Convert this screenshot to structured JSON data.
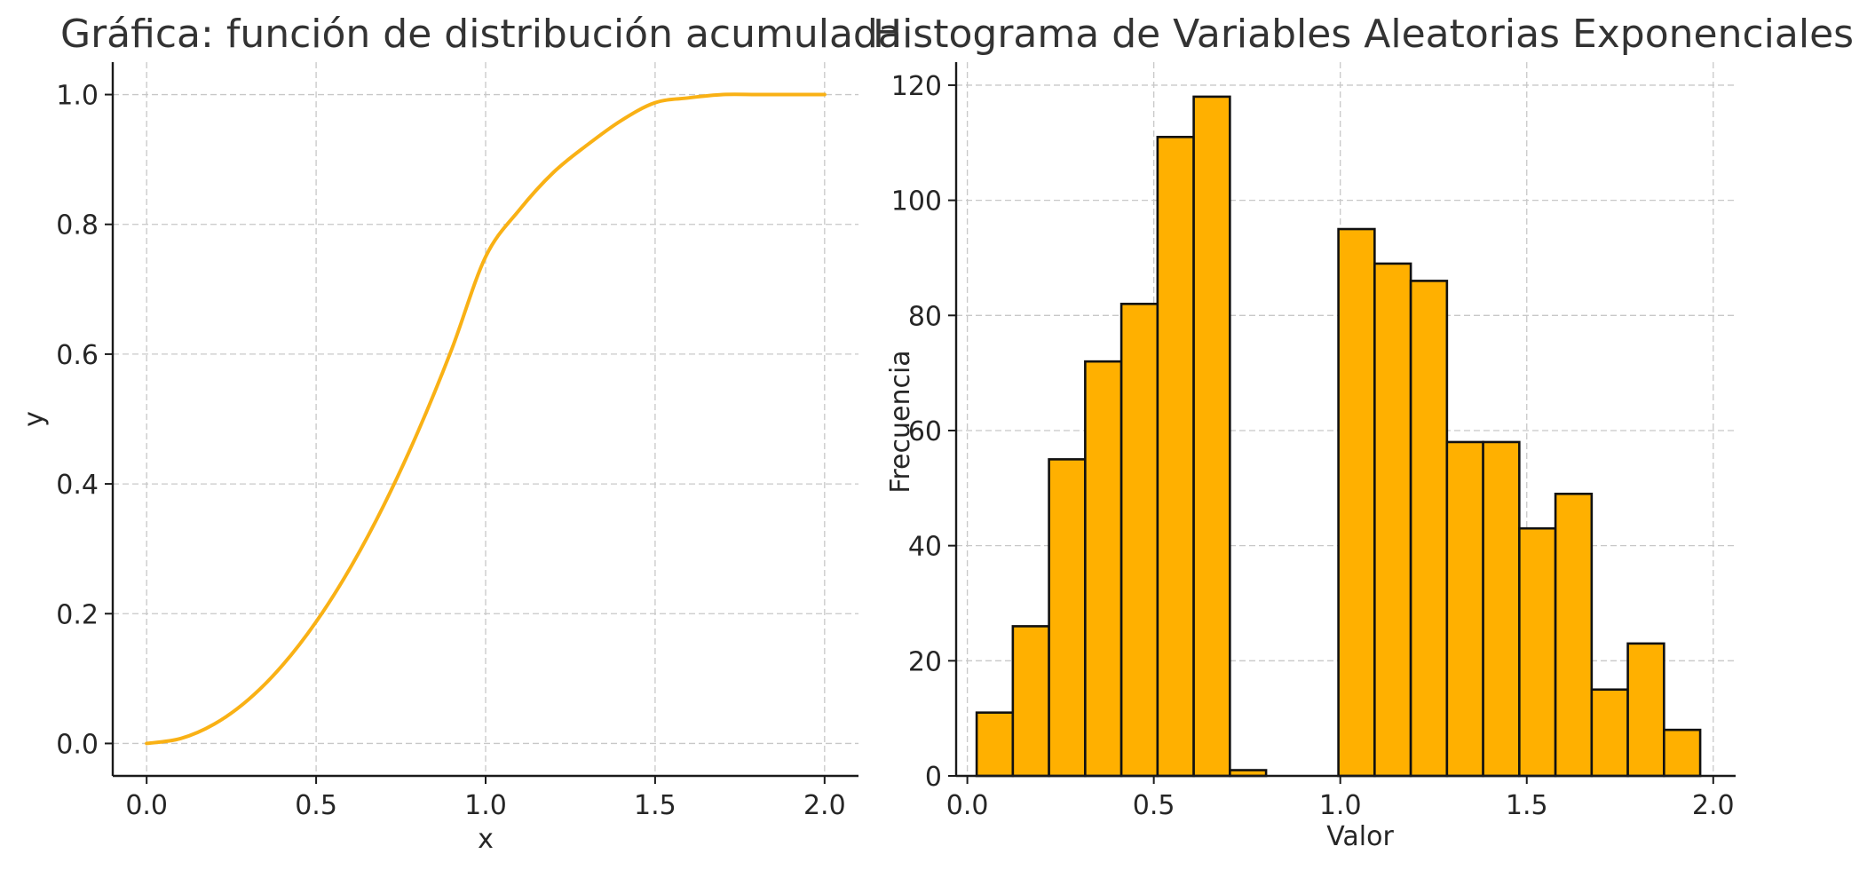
{
  "colors": {
    "line": "#F9B115",
    "bar_fill": "#FFB000",
    "bar_edge": "#111111",
    "grid": "#C8C8C8"
  },
  "chart_data": [
    {
      "type": "line",
      "title": "Gráfica: función de distribución acumulada",
      "xlabel": "x",
      "ylabel": "y",
      "xlim": [
        -0.1,
        2.1
      ],
      "ylim": [
        -0.05,
        1.05
      ],
      "xticks": [
        0.0,
        0.5,
        1.0,
        1.5,
        2.0
      ],
      "xtick_labels": [
        "0.0",
        "0.5",
        "1.0",
        "1.5",
        "2.0"
      ],
      "yticks": [
        0.0,
        0.2,
        0.4,
        0.6,
        0.8,
        1.0
      ],
      "ytick_labels": [
        "0.0",
        "0.2",
        "0.4",
        "0.6",
        "0.8",
        "1.0"
      ],
      "grid": true,
      "series": [
        {
          "x": [
            0.0,
            0.1,
            0.2,
            0.3,
            0.4,
            0.5,
            0.6,
            0.7,
            0.8,
            0.9,
            1.0,
            1.1,
            1.2,
            1.3,
            1.4,
            1.5,
            1.6,
            1.7,
            1.8,
            1.9,
            2.0
          ],
          "y": [
            0.0,
            0.0075,
            0.03,
            0.0675,
            0.12,
            0.1875,
            0.27,
            0.3675,
            0.48,
            0.6075,
            0.75,
            0.8225,
            0.88,
            0.9225,
            0.96,
            0.9875,
            0.995,
            1.0,
            1.0,
            1.0,
            1.0
          ]
        }
      ]
    },
    {
      "type": "bar",
      "title": "Histograma de Variables Aleatorias Exponenciales",
      "xlabel": "Valor",
      "ylabel": "Frecuencia",
      "xlim": [
        -0.03,
        2.06
      ],
      "ylim": [
        0,
        124
      ],
      "xticks": [
        0.0,
        0.5,
        1.0,
        1.5,
        2.0
      ],
      "xtick_labels": [
        "0.0",
        "0.5",
        "1.0",
        "1.5",
        "2.0"
      ],
      "yticks": [
        0,
        20,
        40,
        60,
        80,
        100,
        120
      ],
      "ytick_labels": [
        "0",
        "20",
        "40",
        "60",
        "80",
        "100",
        "120"
      ],
      "grid": true,
      "bin_edges": [
        0.025,
        0.122,
        0.219,
        0.316,
        0.413,
        0.51,
        0.607,
        0.704,
        0.801,
        0.898,
        0.995,
        1.092,
        1.189,
        1.286,
        1.383,
        1.48,
        1.577,
        1.674,
        1.771,
        1.868,
        1.965
      ],
      "counts": [
        11,
        26,
        55,
        72,
        82,
        111,
        118,
        1,
        0,
        0,
        95,
        89,
        86,
        58,
        58,
        43,
        49,
        15,
        23,
        8
      ]
    }
  ]
}
